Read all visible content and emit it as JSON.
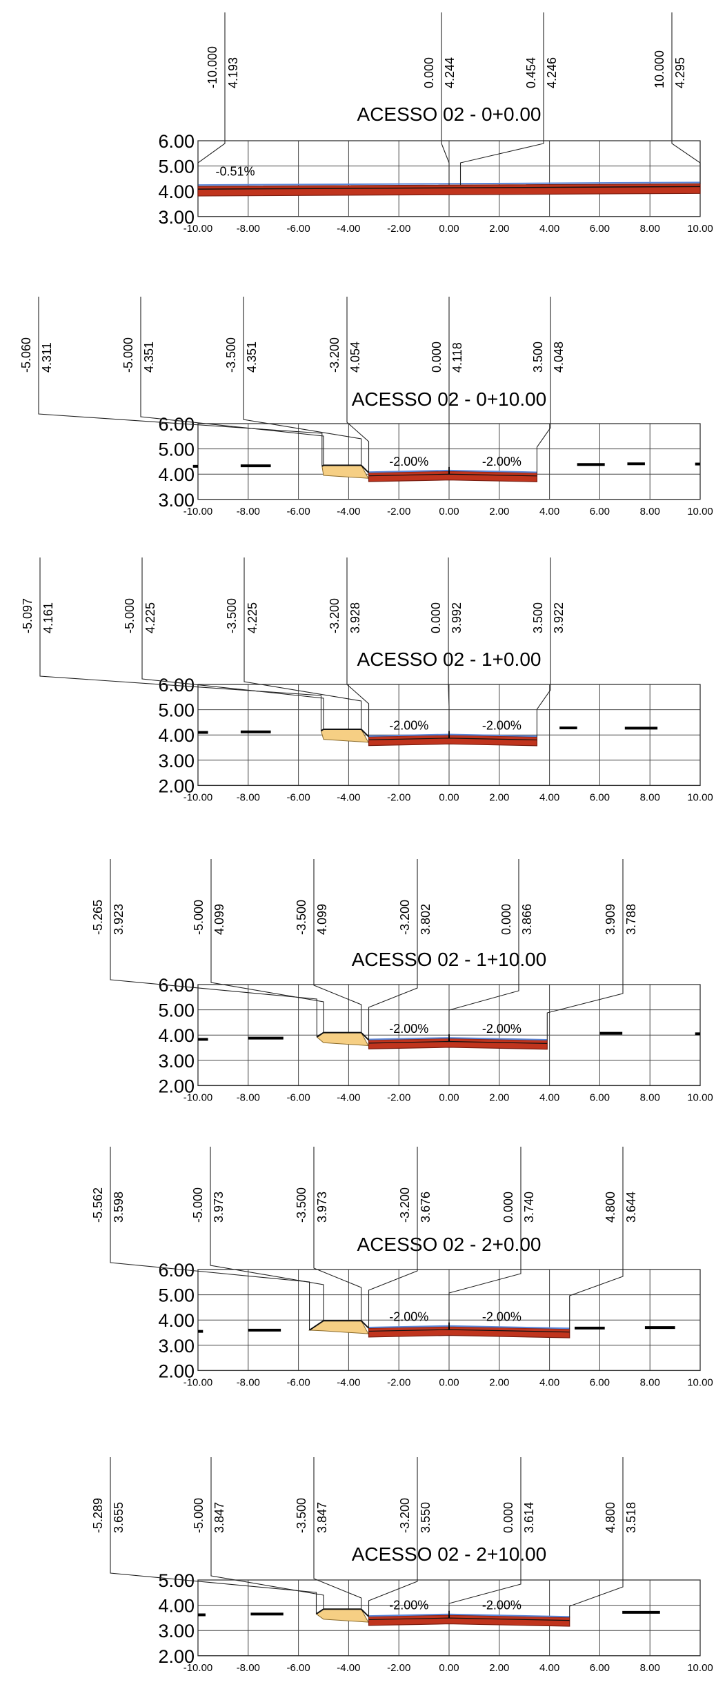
{
  "drawing_title": "",
  "colors": {
    "pavement": "#c0341d",
    "pavement_dark": "#7a1d10",
    "fill": "#f6cf84",
    "blue_line": "#5a86d8",
    "ground": "#000000",
    "grid": "#444444"
  },
  "x_ticks": [
    "-10.00",
    "-8.00",
    "-6.00",
    "-4.00",
    "-2.00",
    "0.00",
    "2.00",
    "4.00",
    "6.00",
    "8.00",
    "10.00"
  ],
  "sections": [
    {
      "title": "ACESSO 02 - 0+0.00",
      "y_ticks": [
        "6.00",
        "5.00",
        "4.00",
        "3.00"
      ],
      "offsets": [
        {
          "offset": "-10.000",
          "elevation": "4.193"
        },
        {
          "offset": "0.000",
          "elevation": "4.244"
        },
        {
          "offset": "0.454",
          "elevation": "4.246"
        },
        {
          "offset": "10.000",
          "elevation": "4.295"
        }
      ],
      "slopes": [
        "-0.51%"
      ]
    },
    {
      "title": "ACESSO 02 - 0+10.00",
      "y_ticks": [
        "6.00",
        "5.00",
        "4.00",
        "3.00"
      ],
      "offsets": [
        {
          "offset": "-5.060",
          "elevation": "4.311"
        },
        {
          "offset": "-5.000",
          "elevation": "4.351"
        },
        {
          "offset": "-3.500",
          "elevation": "4.351"
        },
        {
          "offset": "-3.200",
          "elevation": "4.054"
        },
        {
          "offset": "0.000",
          "elevation": "4.118"
        },
        {
          "offset": "3.500",
          "elevation": "4.048"
        }
      ],
      "slopes": [
        "-2.00%",
        "-2.00%"
      ]
    },
    {
      "title": "ACESSO 02 - 1+0.00",
      "y_ticks": [
        "6.00",
        "5.00",
        "4.00",
        "3.00",
        "2.00"
      ],
      "offsets": [
        {
          "offset": "-5.097",
          "elevation": "4.161"
        },
        {
          "offset": "-5.000",
          "elevation": "4.225"
        },
        {
          "offset": "-3.500",
          "elevation": "4.225"
        },
        {
          "offset": "-3.200",
          "elevation": "3.928"
        },
        {
          "offset": "0.000",
          "elevation": "3.992"
        },
        {
          "offset": "3.500",
          "elevation": "3.922"
        }
      ],
      "slopes": [
        "-2.00%",
        "-2.00%"
      ]
    },
    {
      "title": "ACESSO 02 - 1+10.00",
      "y_ticks": [
        "6.00",
        "5.00",
        "4.00",
        "3.00",
        "2.00"
      ],
      "offsets": [
        {
          "offset": "-5.265",
          "elevation": "3.923"
        },
        {
          "offset": "-5.000",
          "elevation": "4.099"
        },
        {
          "offset": "-3.500",
          "elevation": "4.099"
        },
        {
          "offset": "-3.200",
          "elevation": "3.802"
        },
        {
          "offset": "0.000",
          "elevation": "3.866"
        },
        {
          "offset": "3.909",
          "elevation": "3.788"
        }
      ],
      "slopes": [
        "-2.00%",
        "-2.00%"
      ]
    },
    {
      "title": "ACESSO 02 - 2+0.00",
      "y_ticks": [
        "6.00",
        "5.00",
        "4.00",
        "3.00",
        "2.00"
      ],
      "offsets": [
        {
          "offset": "-5.562",
          "elevation": "3.598"
        },
        {
          "offset": "-5.000",
          "elevation": "3.973"
        },
        {
          "offset": "-3.500",
          "elevation": "3.973"
        },
        {
          "offset": "-3.200",
          "elevation": "3.676"
        },
        {
          "offset": "0.000",
          "elevation": "3.740"
        },
        {
          "offset": "4.800",
          "elevation": "3.644"
        }
      ],
      "slopes": [
        "-2.00%",
        "-2.00%"
      ]
    },
    {
      "title": "ACESSO 02 - 2+10.00",
      "y_ticks": [
        "5.00",
        "4.00",
        "3.00",
        "2.00"
      ],
      "offsets": [
        {
          "offset": "-5.289",
          "elevation": "3.655"
        },
        {
          "offset": "-5.000",
          "elevation": "3.847"
        },
        {
          "offset": "-3.500",
          "elevation": "3.847"
        },
        {
          "offset": "-3.200",
          "elevation": "3.550"
        },
        {
          "offset": "0.000",
          "elevation": "3.614"
        },
        {
          "offset": "4.800",
          "elevation": "3.518"
        }
      ],
      "slopes": [
        "-2.00%",
        "-2.00%"
      ]
    }
  ]
}
